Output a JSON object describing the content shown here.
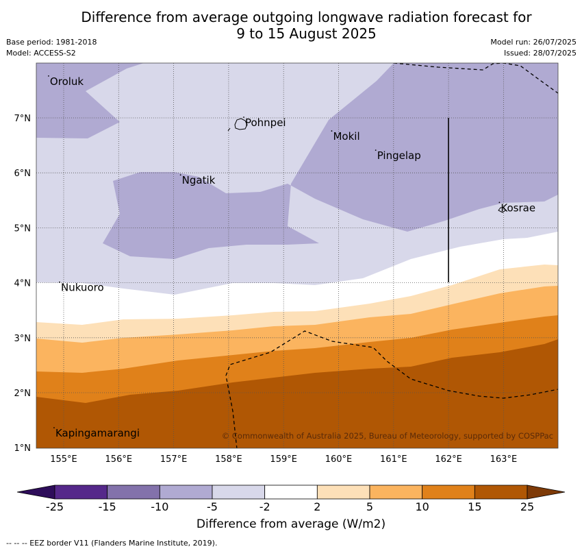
{
  "title_line1": "Difference from average outgoing longwave radiation forecast for",
  "title_line2": "9 to 15 August 2025",
  "base_period": "Base period: 1981-2018",
  "model": "Model: ACCESS-S2",
  "model_run": "Model run: 26/07/2025",
  "issued": "Issued: 28/07/2025",
  "copyright": "© Commonwealth of Australia 2025, Bureau of Meteorology, supported by COSPPac",
  "colorbar_label": "Difference from average (W/m2)",
  "footer_note": "-- -- -- EEZ border V11 (Flanders Marine Institute, 2019).",
  "map": {
    "lon_ticks": [
      "155°E",
      "156°E",
      "157°E",
      "158°E",
      "159°E",
      "160°E",
      "161°E",
      "162°E",
      "163°E"
    ],
    "lat_ticks": [
      "7°N",
      "6°N",
      "5°N",
      "4°N",
      "3°N",
      "2°N",
      "1°N"
    ],
    "places": [
      {
        "name": "Oroluk",
        "lon": 154.75,
        "lat": 7.6
      },
      {
        "name": "Pohnpei",
        "lon": 158.3,
        "lat": 6.85
      },
      {
        "name": "Mokil",
        "lon": 159.9,
        "lat": 6.6
      },
      {
        "name": "Pingelap",
        "lon": 160.7,
        "lat": 6.25
      },
      {
        "name": "Ngatik",
        "lon": 157.15,
        "lat": 5.8
      },
      {
        "name": "Kosrae",
        "lon": 162.95,
        "lat": 5.3
      },
      {
        "name": "Nukuoro",
        "lon": 154.95,
        "lat": 3.85
      },
      {
        "name": "Kapingamarangi",
        "lon": 154.85,
        "lat": 1.2
      }
    ]
  },
  "colorbar": {
    "ticks": [
      "-25",
      "-15",
      "-10",
      "-5",
      "-2",
      "2",
      "5",
      "10",
      "15",
      "25"
    ],
    "colors": [
      "#2e0d5a",
      "#55288a",
      "#8372ab",
      "#b0aad2",
      "#d8d8ea",
      "#ffffff",
      "#fde0b8",
      "#fbb45f",
      "#e0811a",
      "#b05704",
      "#7e3a07"
    ]
  }
}
